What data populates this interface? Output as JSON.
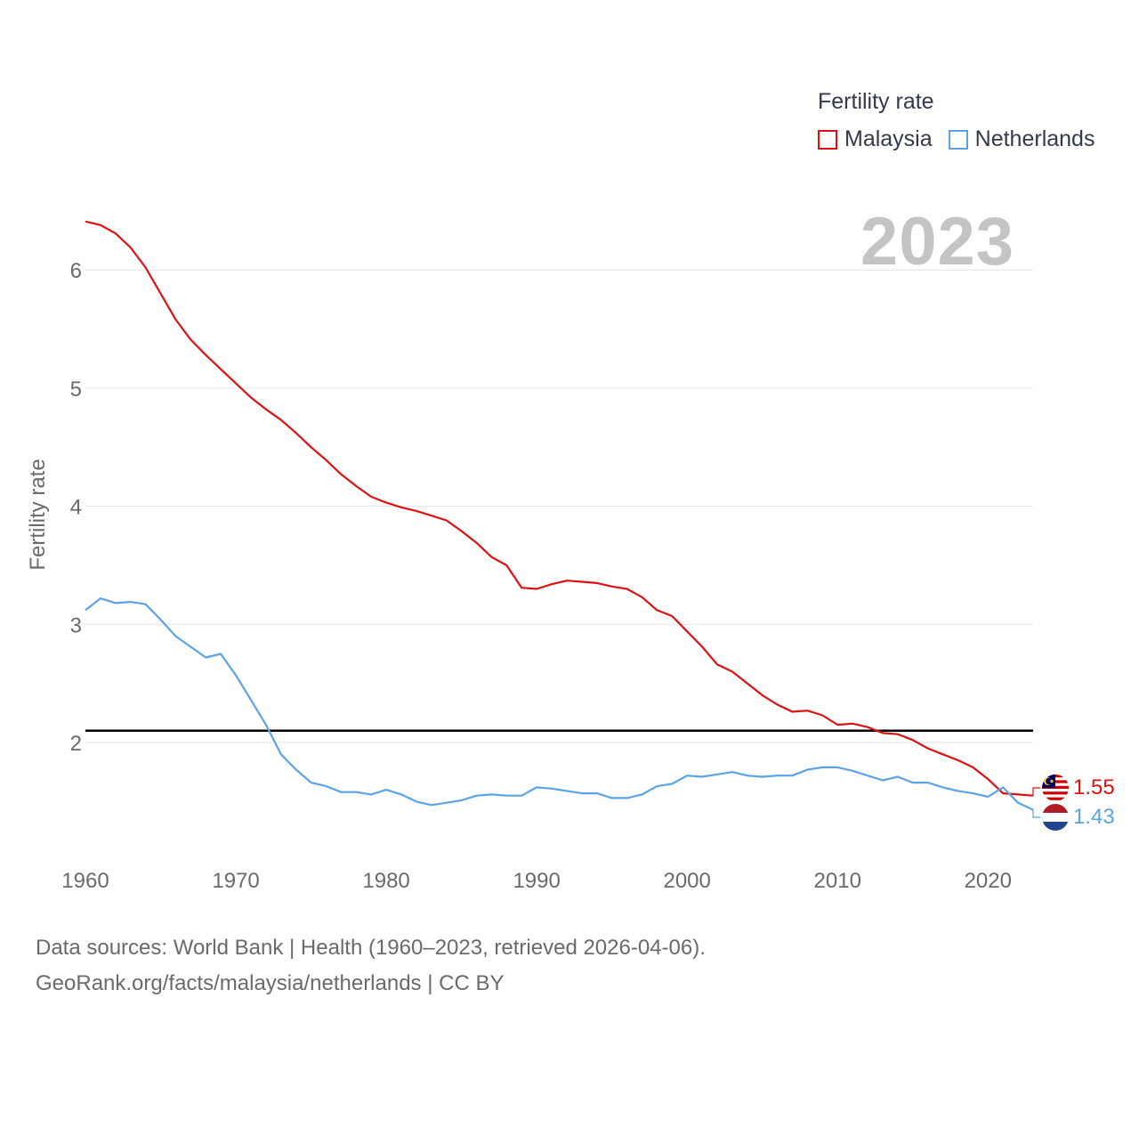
{
  "chart_data": {
    "type": "line",
    "title": "Fertility rate",
    "ylabel": "Fertility rate",
    "xlabel": "",
    "year_label": "2023",
    "xlim": [
      1960,
      2023
    ],
    "ylim": [
      1.0,
      6.5
    ],
    "x_ticks": [
      1960,
      1970,
      1980,
      1990,
      2000,
      2010,
      2020
    ],
    "y_ticks": [
      2,
      3,
      4,
      5,
      6
    ],
    "reference_line": {
      "value": 2.1,
      "color": "#000000"
    },
    "legend": {
      "title": "Fertility rate",
      "placement": "top-right"
    },
    "series": [
      {
        "name": "Malaysia",
        "color": "#dd1111",
        "end_label": "1.55",
        "flag": "malaysia-flag",
        "x": [
          1960,
          1961,
          1962,
          1963,
          1964,
          1965,
          1966,
          1967,
          1968,
          1969,
          1970,
          1971,
          1972,
          1973,
          1974,
          1975,
          1976,
          1977,
          1978,
          1979,
          1980,
          1981,
          1982,
          1983,
          1984,
          1985,
          1986,
          1987,
          1988,
          1989,
          1990,
          1991,
          1992,
          1993,
          1994,
          1995,
          1996,
          1997,
          1998,
          1999,
          2000,
          2001,
          2002,
          2003,
          2004,
          2005,
          2006,
          2007,
          2008,
          2009,
          2010,
          2011,
          2012,
          2013,
          2014,
          2015,
          2016,
          2017,
          2018,
          2019,
          2020,
          2021,
          2022,
          2023
        ],
        "values": [
          6.41,
          6.38,
          6.31,
          6.19,
          6.02,
          5.8,
          5.58,
          5.41,
          5.28,
          5.16,
          5.04,
          4.92,
          4.82,
          4.73,
          4.62,
          4.5,
          4.39,
          4.27,
          4.17,
          4.08,
          4.03,
          3.99,
          3.96,
          3.92,
          3.88,
          3.79,
          3.69,
          3.57,
          3.5,
          3.31,
          3.3,
          3.34,
          3.37,
          3.36,
          3.35,
          3.32,
          3.3,
          3.23,
          3.12,
          3.07,
          2.94,
          2.81,
          2.66,
          2.6,
          2.5,
          2.4,
          2.32,
          2.26,
          2.27,
          2.23,
          2.15,
          2.16,
          2.13,
          2.08,
          2.07,
          2.02,
          1.95,
          1.9,
          1.85,
          1.79,
          1.69,
          1.57,
          1.56,
          1.55
        ]
      },
      {
        "name": "Netherlands",
        "color": "#5ba3e6",
        "end_label": "1.43",
        "flag": "netherlands-flag",
        "x": [
          1960,
          1961,
          1962,
          1963,
          1964,
          1965,
          1966,
          1967,
          1968,
          1969,
          1970,
          1971,
          1972,
          1973,
          1974,
          1975,
          1976,
          1977,
          1978,
          1979,
          1980,
          1981,
          1982,
          1983,
          1984,
          1985,
          1986,
          1987,
          1988,
          1989,
          1990,
          1991,
          1992,
          1993,
          1994,
          1995,
          1996,
          1997,
          1998,
          1999,
          2000,
          2001,
          2002,
          2003,
          2004,
          2005,
          2006,
          2007,
          2008,
          2009,
          2010,
          2011,
          2012,
          2013,
          2014,
          2015,
          2016,
          2017,
          2018,
          2019,
          2020,
          2021,
          2022,
          2023
        ],
        "values": [
          3.12,
          3.22,
          3.18,
          3.19,
          3.17,
          3.04,
          2.9,
          2.81,
          2.72,
          2.75,
          2.57,
          2.36,
          2.15,
          1.9,
          1.77,
          1.66,
          1.63,
          1.58,
          1.58,
          1.56,
          1.6,
          1.56,
          1.5,
          1.47,
          1.49,
          1.51,
          1.55,
          1.56,
          1.55,
          1.55,
          1.62,
          1.61,
          1.59,
          1.57,
          1.57,
          1.53,
          1.53,
          1.56,
          1.63,
          1.65,
          1.72,
          1.71,
          1.73,
          1.75,
          1.72,
          1.71,
          1.72,
          1.72,
          1.77,
          1.79,
          1.79,
          1.76,
          1.72,
          1.68,
          1.71,
          1.66,
          1.66,
          1.62,
          1.59,
          1.57,
          1.54,
          1.62,
          1.49,
          1.43
        ]
      }
    ]
  },
  "footer": {
    "line1": "Data sources: World Bank | Health (1960–2023, retrieved 2026-04-06).",
    "line2": "GeoRank.org/facts/malaysia/netherlands | CC BY"
  }
}
